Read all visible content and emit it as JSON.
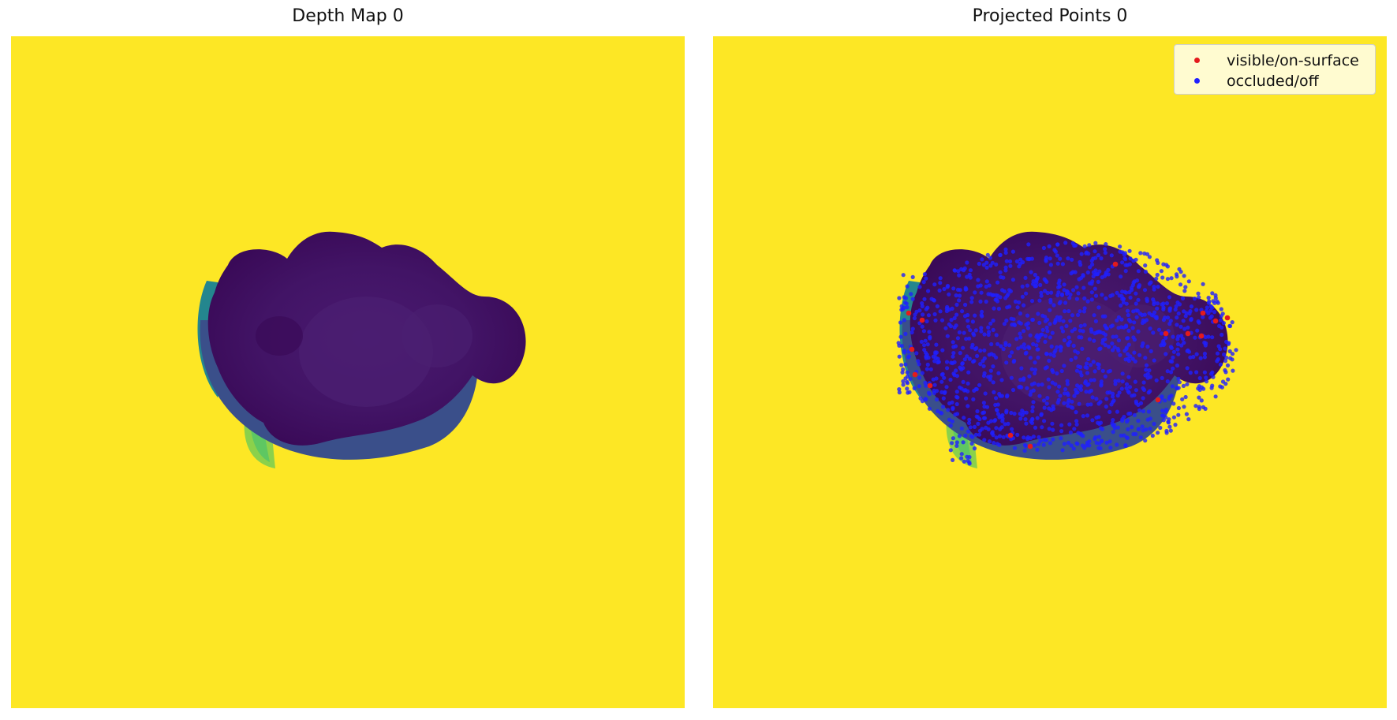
{
  "panels": {
    "left_title": "Depth Map 0",
    "right_title": "Projected Points 0"
  },
  "legend": {
    "visible_label": "visible/on-surface",
    "occluded_label": "occluded/off",
    "visible_color": "#e41a1c",
    "occluded_color": "#1f1fff"
  },
  "colors": {
    "background_far": "#fde725",
    "object_near": "#3e0e5e",
    "object_mid": "#471c6e",
    "rim": "#3b4f8c",
    "teal": "#21918c",
    "green": "#6ccd5a"
  }
}
